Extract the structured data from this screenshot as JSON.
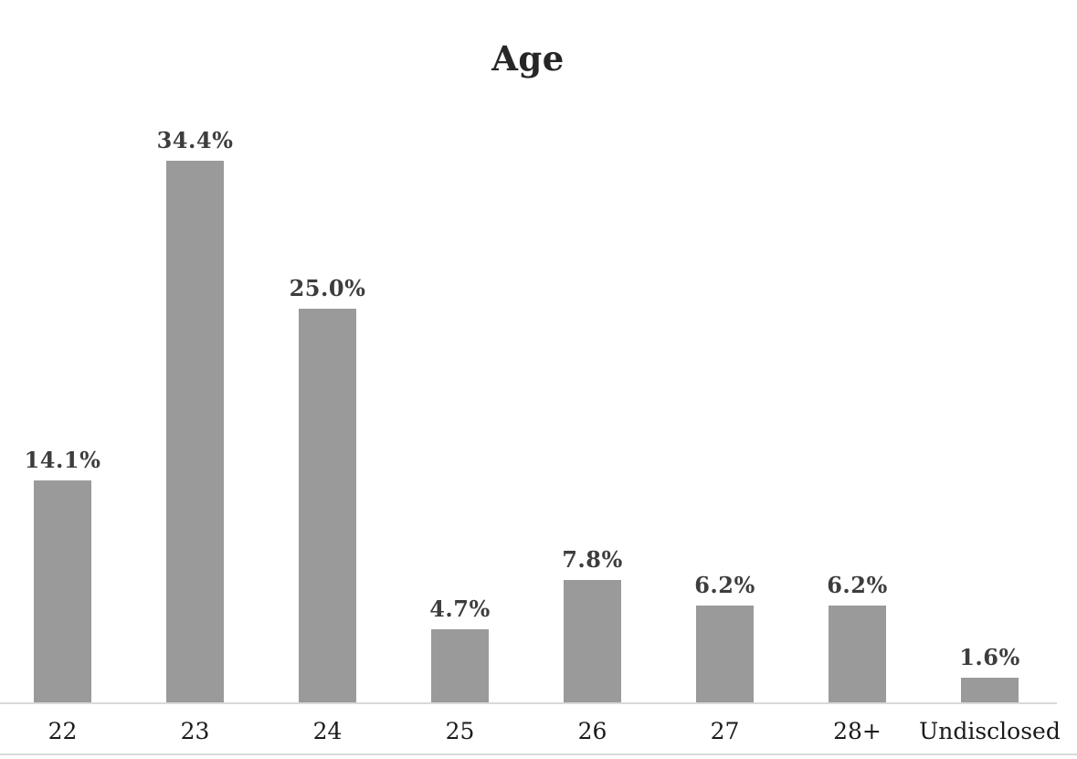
{
  "chart_data": {
    "type": "bar",
    "title": "Age",
    "categories": [
      "22",
      "23",
      "24",
      "25",
      "26",
      "27",
      "28+",
      "Undisclosed"
    ],
    "values": [
      14.1,
      34.4,
      25.0,
      4.7,
      7.8,
      6.2,
      6.2,
      1.6
    ],
    "data_labels": [
      "14.1%",
      "34.4%",
      "25.0%",
      "4.7%",
      "7.8%",
      "6.2%",
      "6.2%",
      "1.6%"
    ],
    "xlabel": "",
    "ylabel": "",
    "ylim": [
      0,
      40
    ],
    "grid": false,
    "legend": "none",
    "orientation": "vertical",
    "colors": {
      "bar": "#9a9a9a",
      "axis_line": "#d9d9d9",
      "data_label": "#3d3d3d",
      "tick_label": "#1a1a1a",
      "title": "#262626",
      "background": "#ffffff"
    }
  }
}
